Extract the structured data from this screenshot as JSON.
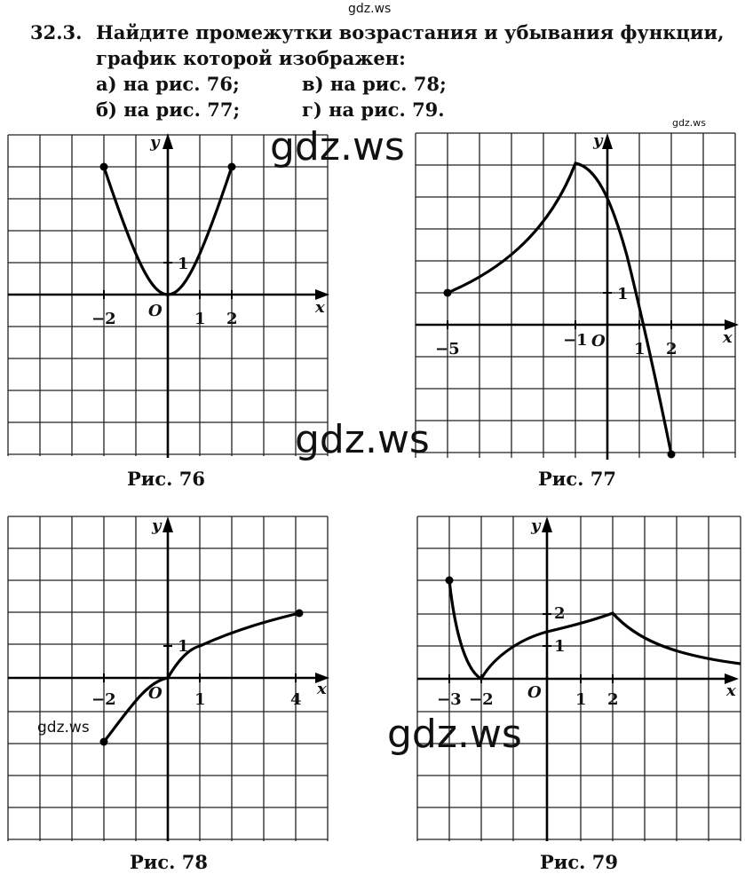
{
  "watermarks": {
    "top": "gdz.ws",
    "small_right": "gdz.ws",
    "big_1": "gdz.ws",
    "big_2": "gdz.ws",
    "small_left": "gdz.ws",
    "big_3": "gdz.ws"
  },
  "task": {
    "number": "32.3.",
    "text_line1": "Найдите промежутки возрастания и убывания функции,",
    "text_line2": "график которой изображен:",
    "items": [
      "а) на рис. 76;",
      "в) на рис. 78;",
      "б) на рис. 77;",
      "г) на рис. 79."
    ]
  },
  "figures": [
    {
      "caption": "Рис. 76",
      "axis_x": "x",
      "axis_y": "y",
      "origin": "O",
      "x_ticks": [
        "−2",
        "1",
        "2"
      ],
      "y_ticks": [
        "1"
      ]
    },
    {
      "caption": "Рис. 77",
      "axis_x": "x",
      "axis_y": "y",
      "origin": "O",
      "x_ticks": [
        "−5",
        "−1",
        "1",
        "2"
      ],
      "y_ticks": [
        "1"
      ]
    },
    {
      "caption": "Рис. 78",
      "axis_x": "x",
      "axis_y": "y",
      "origin": "O",
      "x_ticks": [
        "−2",
        "1",
        "4"
      ],
      "y_ticks": [
        "1"
      ]
    },
    {
      "caption": "Рис. 79",
      "axis_x": "x",
      "axis_y": "y",
      "origin": "O",
      "x_ticks": [
        "−3",
        "−2",
        "1",
        "2"
      ],
      "y_ticks": [
        "2",
        "1"
      ]
    }
  ]
}
